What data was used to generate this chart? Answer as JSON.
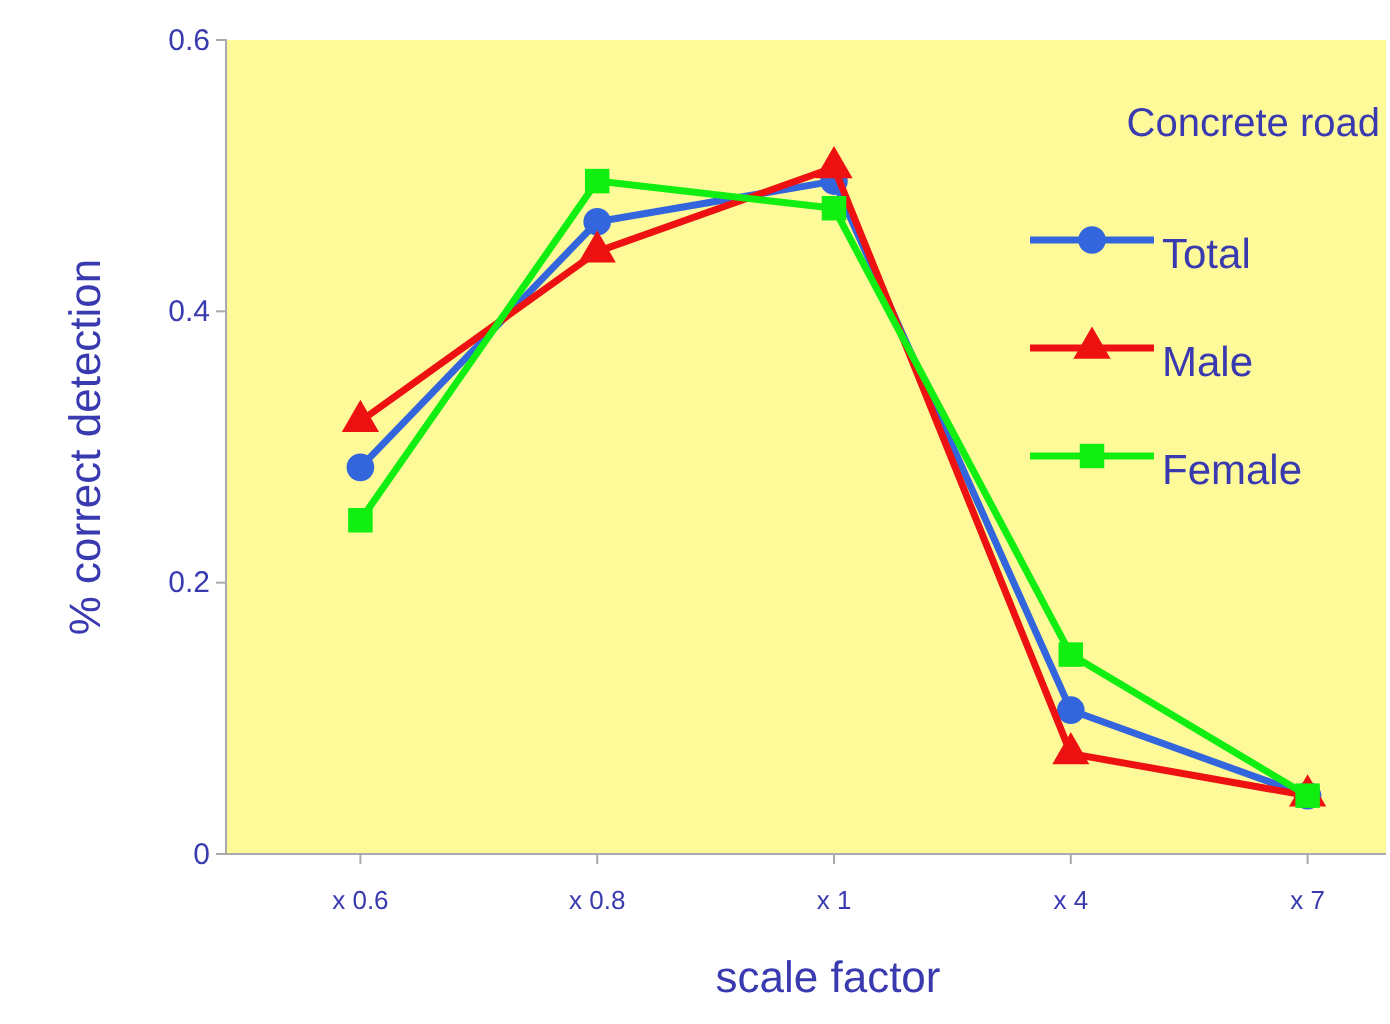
{
  "chart_data": {
    "type": "line",
    "xlabel": "scale factor",
    "ylabel": "% correct detection",
    "legend_title": "Concrete road",
    "categories": [
      "x 0.6",
      "x 0.8",
      "x 1",
      "x 4",
      "x 7"
    ],
    "series": [
      {
        "name": "Total",
        "color": "#3366dd",
        "marker": "circle",
        "values": [
          0.285,
          0.466,
          0.496,
          0.106,
          0.043
        ]
      },
      {
        "name": "Male",
        "color": "#ee1111",
        "marker": "triangle",
        "values": [
          0.319,
          0.444,
          0.506,
          0.074,
          0.043
        ]
      },
      {
        "name": "Female",
        "color": "#11ee11",
        "marker": "square",
        "values": [
          0.246,
          0.496,
          0.476,
          0.147,
          0.043
        ]
      }
    ],
    "ylim": [
      0,
      0.6
    ],
    "yticks": [
      0,
      0.2,
      0.4,
      0.6
    ],
    "legend": "top right",
    "grid": false
  }
}
